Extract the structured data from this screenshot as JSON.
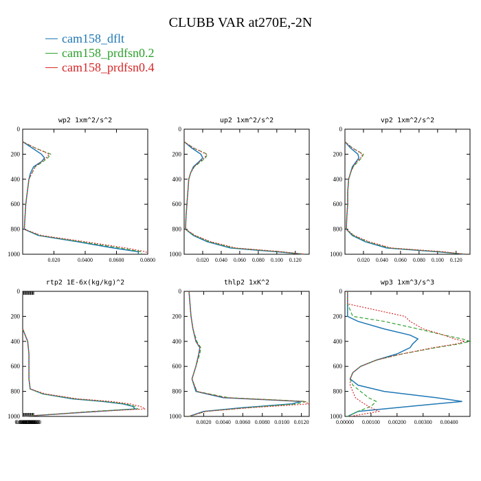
{
  "figure": {
    "title": "CLUBB VAR at270E,-2N"
  },
  "legend": [
    {
      "label": "cam158_dflt",
      "color": "#1f77b4"
    },
    {
      "label": "cam158_prdfsn0.2",
      "color": "#2ca02c"
    },
    {
      "label": "cam158_prdfsn0.4",
      "color": "#d62728"
    }
  ],
  "chart_data": [
    {
      "type": "line",
      "title": "wp2  1xm^2/s^2",
      "ylim": [
        1000,
        0
      ],
      "xlim": [
        0.0,
        0.08
      ],
      "yticks": [
        "0",
        "200",
        "400",
        "600",
        "800",
        "1000"
      ],
      "xticks": [
        "0.020",
        "0.0400",
        "0.0600",
        "0.0800"
      ],
      "y": [
        100,
        150,
        200,
        230,
        260,
        300,
        350,
        400,
        500,
        600,
        700,
        800,
        850,
        900,
        950,
        980,
        1000
      ],
      "series": [
        {
          "name": "cam158_dflt",
          "values": [
            0.0,
            0.006,
            0.012,
            0.014,
            0.012,
            0.007,
            0.005,
            0.004,
            0.003,
            0.002,
            0.0015,
            0.001,
            0.01,
            0.035,
            0.058,
            0.074,
            0.074
          ]
        },
        {
          "name": "cam158_prdfsn0.2",
          "values": [
            0.0,
            0.008,
            0.018,
            0.016,
            0.013,
            0.008,
            0.006,
            0.004,
            0.003,
            0.002,
            0.0015,
            0.001,
            0.011,
            0.037,
            0.062,
            0.076,
            0.076
          ]
        },
        {
          "name": "cam158_prdfsn0.4",
          "values": [
            0.0,
            0.008,
            0.017,
            0.015,
            0.012,
            0.008,
            0.006,
            0.004,
            0.003,
            0.002,
            0.0015,
            0.001,
            0.012,
            0.04,
            0.066,
            0.079,
            0.079
          ]
        }
      ]
    },
    {
      "type": "line",
      "title": "up2  1xm^2/s^2",
      "ylim": [
        1000,
        0
      ],
      "xlim": [
        0.0,
        0.135
      ],
      "yticks": [
        "0",
        "200",
        "400",
        "600",
        "800",
        "1000"
      ],
      "xticks": [
        "0.020",
        "0.040",
        "0.060",
        "0.080",
        "0.100",
        "0.120"
      ],
      "y": [
        100,
        150,
        200,
        230,
        260,
        300,
        350,
        400,
        500,
        600,
        700,
        800,
        850,
        900,
        950,
        980,
        1000
      ],
      "series": [
        {
          "name": "cam158_dflt",
          "values": [
            0.0,
            0.008,
            0.018,
            0.02,
            0.016,
            0.01,
            0.007,
            0.005,
            0.004,
            0.003,
            0.002,
            0.0015,
            0.01,
            0.025,
            0.05,
            0.1,
            0.13
          ]
        },
        {
          "name": "cam158_prdfsn0.2",
          "values": [
            0.0,
            0.01,
            0.025,
            0.023,
            0.018,
            0.011,
            0.007,
            0.005,
            0.004,
            0.003,
            0.002,
            0.0015,
            0.011,
            0.027,
            0.053,
            0.103,
            0.13
          ]
        },
        {
          "name": "cam158_prdfsn0.4",
          "values": [
            0.0,
            0.01,
            0.024,
            0.022,
            0.017,
            0.011,
            0.007,
            0.005,
            0.004,
            0.003,
            0.002,
            0.0015,
            0.012,
            0.029,
            0.056,
            0.106,
            0.13
          ]
        }
      ]
    },
    {
      "type": "line",
      "title": "vp2  1xm^2/s^2",
      "ylim": [
        1000,
        0
      ],
      "xlim": [
        0.0,
        0.135
      ],
      "yticks": [
        "0",
        "200",
        "400",
        "600",
        "800",
        "1000"
      ],
      "xticks": [
        "0.020",
        "0.040",
        "0.060",
        "0.080",
        "0.100",
        "0.120"
      ],
      "y": [
        100,
        150,
        200,
        230,
        260,
        300,
        350,
        400,
        500,
        600,
        700,
        800,
        850,
        900,
        950,
        980,
        1000
      ],
      "series": [
        {
          "name": "cam158_dflt",
          "values": [
            0.0,
            0.006,
            0.014,
            0.015,
            0.012,
            0.008,
            0.006,
            0.004,
            0.003,
            0.003,
            0.002,
            0.0015,
            0.008,
            0.022,
            0.045,
            0.1,
            0.13
          ]
        },
        {
          "name": "cam158_prdfsn0.2",
          "values": [
            0.0,
            0.008,
            0.02,
            0.018,
            0.014,
            0.009,
            0.006,
            0.004,
            0.003,
            0.003,
            0.002,
            0.0015,
            0.009,
            0.024,
            0.048,
            0.103,
            0.13
          ]
        },
        {
          "name": "cam158_prdfsn0.4",
          "values": [
            0.0,
            0.008,
            0.019,
            0.017,
            0.013,
            0.009,
            0.006,
            0.004,
            0.003,
            0.003,
            0.002,
            0.0015,
            0.01,
            0.026,
            0.05,
            0.106,
            0.13
          ]
        }
      ]
    },
    {
      "type": "line",
      "title": "rtp2  1E-6x(kg/kg)^2",
      "ylim": [
        1000,
        0
      ],
      "xlim": [
        0.0,
        0.5
      ],
      "yticks": [
        "0",
        "200",
        "400",
        "600",
        "800",
        "1000"
      ],
      "xticks": [
        "0.0040",
        "0.0080",
        "0.0120",
        "0.0160",
        "0.0200",
        "0.0240",
        "0.0280",
        "0.0320",
        "0.0360",
        "0.0400",
        "0.0440"
      ],
      "xtick_labels": [
        "0.00400",
        "0.00800",
        "0.0120",
        "0.0160",
        "0.0200",
        "0.0240",
        "0.0280",
        "0.0320",
        "0.0360",
        "0.0400",
        "0.0440"
      ],
      "y": [
        300,
        400,
        500,
        600,
        700,
        780,
        820,
        860,
        880,
        900,
        920,
        940,
        960,
        1000
      ],
      "series": [
        {
          "name": "cam158_dflt",
          "values": [
            0.0,
            0.02,
            0.025,
            0.025,
            0.025,
            0.03,
            0.08,
            0.2,
            0.32,
            0.4,
            0.44,
            0.45,
            0.3,
            0.0
          ]
        },
        {
          "name": "cam158_prdfsn0.2",
          "values": [
            0.0,
            0.02,
            0.025,
            0.025,
            0.025,
            0.03,
            0.08,
            0.21,
            0.33,
            0.41,
            0.45,
            0.46,
            0.28,
            0.0
          ]
        },
        {
          "name": "cam158_prdfsn0.4",
          "values": [
            0.0,
            0.02,
            0.025,
            0.025,
            0.025,
            0.03,
            0.09,
            0.22,
            0.35,
            0.43,
            0.47,
            0.49,
            0.3,
            0.0
          ]
        }
      ]
    },
    {
      "type": "line",
      "title": "thlp2  1xK^2",
      "ylim": [
        1000,
        0
      ],
      "xlim": [
        0.0,
        0.0128
      ],
      "yticks": [
        "0",
        "200",
        "400",
        "600",
        "800",
        "1000"
      ],
      "xticks": [
        "0.0020",
        "0.0040",
        "0.0060",
        "0.0080",
        "0.0100",
        "0.0120"
      ],
      "y": [
        0,
        100,
        200,
        300,
        400,
        450,
        500,
        600,
        700,
        800,
        850,
        880,
        900,
        930,
        960,
        1000
      ],
      "series": [
        {
          "name": "cam158_dflt",
          "values": [
            0.0005,
            0.0006,
            0.0007,
            0.0009,
            0.0012,
            0.0016,
            0.0015,
            0.0012,
            0.0008,
            0.0012,
            0.004,
            0.012,
            0.011,
            0.006,
            0.002,
            0.0005
          ]
        },
        {
          "name": "cam158_prdfsn0.2",
          "values": [
            0.0005,
            0.0006,
            0.0007,
            0.0009,
            0.0013,
            0.0017,
            0.0016,
            0.0012,
            0.0008,
            0.0013,
            0.0045,
            0.0125,
            0.0115,
            0.0065,
            0.0022,
            0.0005
          ]
        },
        {
          "name": "cam158_prdfsn0.4",
          "values": [
            0.0005,
            0.0006,
            0.0007,
            0.0009,
            0.0012,
            0.0016,
            0.0015,
            0.0012,
            0.0008,
            0.0013,
            0.0042,
            0.0122,
            0.0128,
            0.0068,
            0.0022,
            0.0005
          ]
        }
      ]
    },
    {
      "type": "line",
      "title": "wp3  1xm^3/s^3",
      "ylim": [
        1000,
        0
      ],
      "xlim": [
        0.0,
        0.0048
      ],
      "yticks": [
        "0",
        "200",
        "400",
        "600",
        "800",
        "1000"
      ],
      "xticks": [
        "0.00000",
        "0.00100",
        "0.00200",
        "0.00300",
        "0.00400"
      ],
      "y": [
        0,
        100,
        200,
        240,
        300,
        350,
        380,
        400,
        420,
        450,
        500,
        550,
        600,
        650,
        700,
        750,
        800,
        850,
        880,
        920,
        960,
        1000
      ],
      "series": [
        {
          "name": "cam158_dflt",
          "values": [
            0.0001,
            0.0001,
            0.0001,
            0.0005,
            0.0015,
            0.0025,
            0.0028,
            0.0027,
            0.0026,
            0.0025,
            0.002,
            0.0012,
            0.0006,
            0.0003,
            0.0002,
            0.0005,
            0.0015,
            0.0035,
            0.0045,
            0.0025,
            0.0005,
            0.0001
          ]
        },
        {
          "name": "cam158_prdfsn0.2",
          "values": [
            0.0001,
            0.0001,
            0.0003,
            0.0015,
            0.0028,
            0.0038,
            0.0045,
            0.0048,
            0.0044,
            0.0035,
            0.0022,
            0.0012,
            0.0006,
            0.0003,
            0.0002,
            0.0003,
            0.0006,
            0.0009,
            0.0012,
            0.001,
            0.0005,
            0.0001
          ]
        },
        {
          "name": "cam158_prdfsn0.4",
          "values": [
            0.0001,
            0.0001,
            0.0023,
            0.0025,
            0.003,
            0.0038,
            0.0042,
            0.0046,
            0.0043,
            0.0034,
            0.0022,
            0.0012,
            0.0006,
            0.0003,
            0.0002,
            0.0002,
            0.0003,
            0.0004,
            0.0006,
            0.0009,
            0.0013,
            0.0002
          ]
        }
      ]
    }
  ]
}
